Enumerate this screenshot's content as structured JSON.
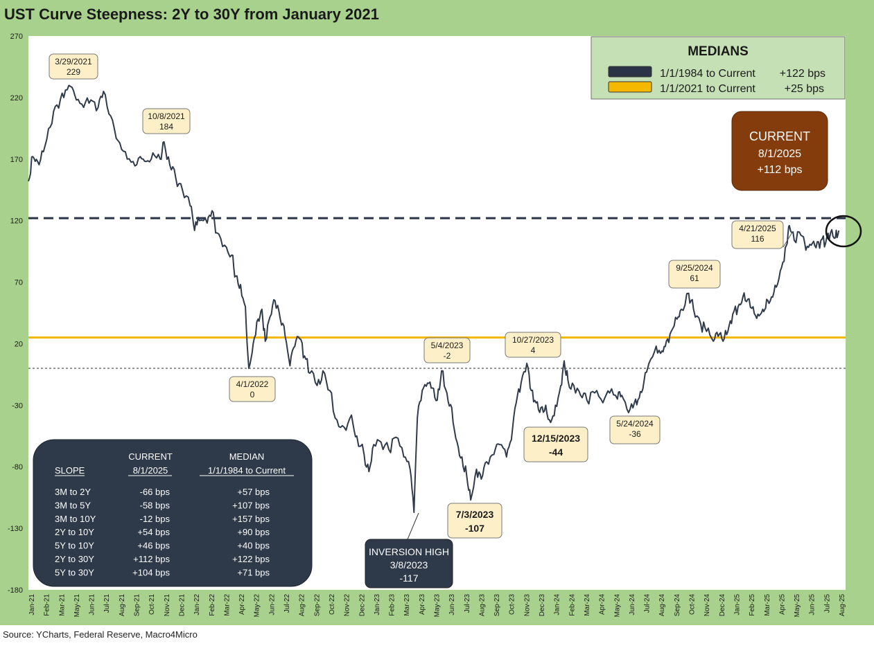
{
  "title": "UST Curve Steepness: 2Y to 30Y from January 2021",
  "source": "Source: YCharts, Federal Reserve, Macro4Micro",
  "colors": {
    "frame": "#a9d18e",
    "series": "#2f3a4b",
    "median_long": "#2b3447",
    "median_short": "#f5b800",
    "callout_fill": "#fdf0c8",
    "current_box": "#843c0c",
    "table_box": "#2e3949"
  },
  "chart_data": {
    "type": "line",
    "ylim": [
      -180,
      270
    ],
    "yticks": [
      270,
      220,
      170,
      120,
      70,
      20,
      -30,
      -80,
      -130,
      -180
    ],
    "xlim": [
      "2021-01-01",
      "2025-08-15"
    ],
    "xticks": [
      "Jan-21",
      "Feb-21",
      "Mar-21",
      "May-21",
      "Jun-21",
      "Jul-21",
      "Aug-21",
      "Sep-21",
      "Oct-21",
      "Nov-21",
      "Dec-21",
      "Jan-22",
      "Feb-22",
      "Mar-22",
      "Apr-22",
      "May-22",
      "Jun-22",
      "Jul-22",
      "Aug-22",
      "Sep-22",
      "Oct-22",
      "Nov-22",
      "Dec-22",
      "Jan-23",
      "Feb-23",
      "Mar-23",
      "Apr-23",
      "May-23",
      "Jun-23",
      "Jul-23",
      "Aug-23",
      "Sep-23",
      "Oct-23",
      "Nov-23",
      "Dec-23",
      "Jan-24",
      "Feb-24",
      "Mar-24",
      "Apr-24",
      "May-24",
      "Jun-24",
      "Jul-24",
      "Aug-24",
      "Sep-24",
      "Oct-24",
      "Nov-24",
      "Dec-24",
      "Jan-25",
      "Feb-25",
      "Mar-25",
      "Apr-25",
      "May-25",
      "Jun-25",
      "Jul-25",
      "Aug-25"
    ],
    "series": [
      {
        "name": "2Y to 30Y",
        "points": [
          [
            "2021-01-01",
            152
          ],
          [
            "2021-01-10",
            172
          ],
          [
            "2021-01-20",
            168
          ],
          [
            "2021-02-01",
            176
          ],
          [
            "2021-02-15",
            196
          ],
          [
            "2021-03-01",
            214
          ],
          [
            "2021-03-15",
            220
          ],
          [
            "2021-03-29",
            229
          ],
          [
            "2021-04-10",
            218
          ],
          [
            "2021-04-25",
            212
          ],
          [
            "2021-05-10",
            218
          ],
          [
            "2021-05-25",
            212
          ],
          [
            "2021-06-05",
            225
          ],
          [
            "2021-06-20",
            205
          ],
          [
            "2021-07-05",
            185
          ],
          [
            "2021-07-20",
            176
          ],
          [
            "2021-08-05",
            168
          ],
          [
            "2021-08-20",
            172
          ],
          [
            "2021-09-01",
            168
          ],
          [
            "2021-09-15",
            175
          ],
          [
            "2021-09-30",
            170
          ],
          [
            "2021-10-08",
            184
          ],
          [
            "2021-10-20",
            165
          ],
          [
            "2021-11-01",
            155
          ],
          [
            "2021-11-15",
            145
          ],
          [
            "2021-12-01",
            132
          ],
          [
            "2021-12-10",
            112
          ],
          [
            "2021-12-20",
            120
          ],
          [
            "2022-01-05",
            118
          ],
          [
            "2022-01-15",
            128
          ],
          [
            "2022-01-25",
            110
          ],
          [
            "2022-02-10",
            100
          ],
          [
            "2022-02-25",
            92
          ],
          [
            "2022-03-05",
            75
          ],
          [
            "2022-03-15",
            68
          ],
          [
            "2022-03-25",
            50
          ],
          [
            "2022-04-01",
            0
          ],
          [
            "2022-04-10",
            20
          ],
          [
            "2022-04-20",
            40
          ],
          [
            "2022-04-28",
            48
          ],
          [
            "2022-05-05",
            22
          ],
          [
            "2022-05-15",
            42
          ],
          [
            "2022-05-25",
            55
          ],
          [
            "2022-06-05",
            40
          ],
          [
            "2022-06-15",
            26
          ],
          [
            "2022-06-25",
            2
          ],
          [
            "2022-07-05",
            18
          ],
          [
            "2022-07-15",
            24
          ],
          [
            "2022-07-25",
            10
          ],
          [
            "2022-08-05",
            -4
          ],
          [
            "2022-08-20",
            -14
          ],
          [
            "2022-09-01",
            -2
          ],
          [
            "2022-09-15",
            -18
          ],
          [
            "2022-09-30",
            -42
          ],
          [
            "2022-10-15",
            -48
          ],
          [
            "2022-10-30",
            -38
          ],
          [
            "2022-11-10",
            -55
          ],
          [
            "2022-11-25",
            -70
          ],
          [
            "2022-12-05",
            -84
          ],
          [
            "2022-12-15",
            -62
          ],
          [
            "2022-12-30",
            -60
          ],
          [
            "2023-01-15",
            -66
          ],
          [
            "2023-01-30",
            -56
          ],
          [
            "2023-02-15",
            -72
          ],
          [
            "2023-02-28",
            -82
          ],
          [
            "2023-03-08",
            -117
          ],
          [
            "2023-03-15",
            -40
          ],
          [
            "2023-03-25",
            -18
          ],
          [
            "2023-04-05",
            -12
          ],
          [
            "2023-04-15",
            -16
          ],
          [
            "2023-04-25",
            -26
          ],
          [
            "2023-05-04",
            -2
          ],
          [
            "2023-05-15",
            -20
          ],
          [
            "2023-05-25",
            -32
          ],
          [
            "2023-06-05",
            -60
          ],
          [
            "2023-06-15",
            -72
          ],
          [
            "2023-06-25",
            -88
          ],
          [
            "2023-07-03",
            -107
          ],
          [
            "2023-07-15",
            -82
          ],
          [
            "2023-07-25",
            -90
          ],
          [
            "2023-08-05",
            -76
          ],
          [
            "2023-08-20",
            -70
          ],
          [
            "2023-09-01",
            -62
          ],
          [
            "2023-09-15",
            -72
          ],
          [
            "2023-09-25",
            -58
          ],
          [
            "2023-10-05",
            -28
          ],
          [
            "2023-10-15",
            -12
          ],
          [
            "2023-10-27",
            4
          ],
          [
            "2023-11-05",
            -18
          ],
          [
            "2023-11-15",
            -28
          ],
          [
            "2023-11-25",
            -32
          ],
          [
            "2023-12-05",
            -30
          ],
          [
            "2023-12-15",
            -44
          ],
          [
            "2023-12-25",
            -30
          ],
          [
            "2024-01-05",
            -14
          ],
          [
            "2024-01-12",
            6
          ],
          [
            "2024-01-20",
            -10
          ],
          [
            "2024-02-01",
            -14
          ],
          [
            "2024-02-15",
            -22
          ],
          [
            "2024-02-28",
            -26
          ],
          [
            "2024-03-15",
            -20
          ],
          [
            "2024-04-01",
            -28
          ],
          [
            "2024-04-15",
            -20
          ],
          [
            "2024-05-01",
            -25
          ],
          [
            "2024-05-10",
            -22
          ],
          [
            "2024-05-24",
            -36
          ],
          [
            "2024-06-05",
            -28
          ],
          [
            "2024-06-15",
            -24
          ],
          [
            "2024-06-25",
            -10
          ],
          [
            "2024-07-05",
            4
          ],
          [
            "2024-07-20",
            18
          ],
          [
            "2024-08-01",
            14
          ],
          [
            "2024-08-10",
            22
          ],
          [
            "2024-08-20",
            30
          ],
          [
            "2024-09-01",
            40
          ],
          [
            "2024-09-10",
            48
          ],
          [
            "2024-09-25",
            61
          ],
          [
            "2024-10-05",
            48
          ],
          [
            "2024-10-20",
            36
          ],
          [
            "2024-11-01",
            30
          ],
          [
            "2024-11-15",
            22
          ],
          [
            "2024-11-25",
            26
          ],
          [
            "2024-12-05",
            22
          ],
          [
            "2024-12-15",
            30
          ],
          [
            "2024-12-25",
            44
          ],
          [
            "2025-01-05",
            50
          ],
          [
            "2025-01-15",
            58
          ],
          [
            "2025-01-25",
            56
          ],
          [
            "2025-02-05",
            50
          ],
          [
            "2025-02-15",
            44
          ],
          [
            "2025-02-25",
            48
          ],
          [
            "2025-03-05",
            56
          ],
          [
            "2025-03-15",
            58
          ],
          [
            "2025-03-25",
            66
          ],
          [
            "2025-04-05",
            82
          ],
          [
            "2025-04-15",
            100
          ],
          [
            "2025-04-21",
            116
          ],
          [
            "2025-05-01",
            104
          ],
          [
            "2025-05-15",
            108
          ],
          [
            "2025-05-25",
            96
          ],
          [
            "2025-06-05",
            100
          ],
          [
            "2025-06-15",
            98
          ],
          [
            "2025-06-25",
            104
          ],
          [
            "2025-07-05",
            102
          ],
          [
            "2025-07-15",
            110
          ],
          [
            "2025-07-25",
            106
          ],
          [
            "2025-08-01",
            112
          ]
        ]
      }
    ],
    "reference_lines": [
      {
        "label": "1/1/1984 to Current",
        "value": 122,
        "text": "+122 bps",
        "style": "dashed"
      },
      {
        "label": "1/1/2021 to Current",
        "value": 25,
        "text": "+25 bps",
        "style": "solid"
      },
      {
        "value": 0,
        "style": "dotted"
      }
    ],
    "callouts": [
      {
        "date": "3/29/2021",
        "value": "229"
      },
      {
        "date": "10/8/2021",
        "value": "184"
      },
      {
        "date": "4/1/2022",
        "value": "0"
      },
      {
        "date": "5/4/2023",
        "value": "-2"
      },
      {
        "date": "10/27/2023",
        "value": "4"
      },
      {
        "date": "12/15/2023",
        "value": "-44"
      },
      {
        "date": "7/3/2023",
        "value": "-107"
      },
      {
        "date": "5/24/2024",
        "value": "-36"
      },
      {
        "date": "9/25/2024",
        "value": "61"
      },
      {
        "date": "4/21/2025",
        "value": "116"
      }
    ],
    "inversion": {
      "title": "INVERSION HIGH",
      "date": "3/8/2023",
      "value": "-117"
    },
    "legend": {
      "title": "MEDIANS",
      "position": "top-right",
      "items": [
        {
          "label": "1/1/1984 to Current",
          "value": "+122 bps"
        },
        {
          "label": "1/1/2021 to Current",
          "value": "+25 bps"
        }
      ]
    },
    "current": {
      "title": "CURRENT",
      "date": "8/1/2025",
      "value": "+112 bps"
    },
    "table": {
      "headers": {
        "col2_top": "CURRENT",
        "col3_top": "MEDIAN",
        "col1": "SLOPE",
        "col2": "8/1/2025",
        "col3": "1/1/1984 to Current"
      },
      "rows": [
        [
          "3M to 2Y",
          "-66 bps",
          "+57 bps"
        ],
        [
          "3M to 5Y",
          "-58 bps",
          "+107 bps"
        ],
        [
          "3M to 10Y",
          "-12 bps",
          "+157 bps"
        ],
        [
          "2Y to 10Y",
          "+54 bps",
          "+90 bps"
        ],
        [
          "5Y to 10Y",
          "+46 bps",
          "+40 bps"
        ],
        [
          "2Y to 30Y",
          "+112 bps",
          "+122 bps"
        ],
        [
          "5Y to 30Y",
          "+104 bps",
          "+71 bps"
        ]
      ]
    }
  }
}
